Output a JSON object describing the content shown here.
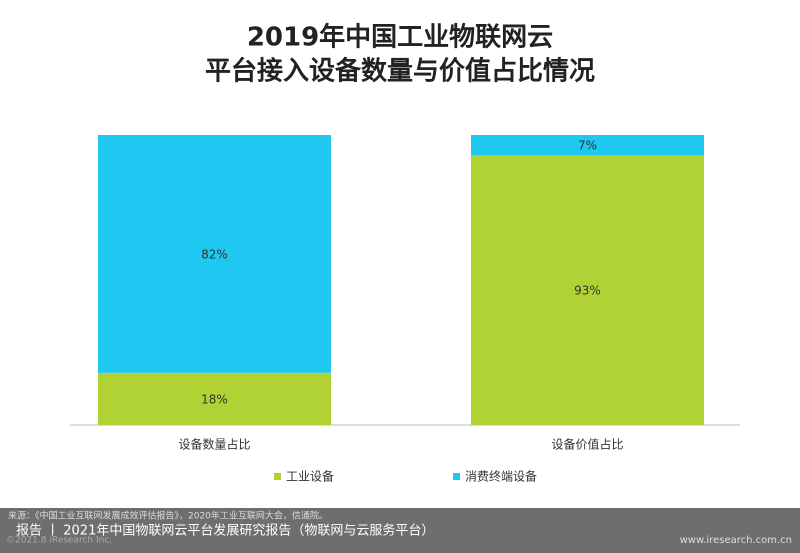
{
  "chart_data": {
    "type": "stacked_bar",
    "title": "2019年中国工业物联网云",
    "subtitle": "平台接入设备数量与价值占比情况",
    "categories": [
      "设备数量占比",
      "设备价值占比"
    ],
    "series": [
      {
        "name": "工业设备",
        "color": "#b0d235",
        "values": [
          18,
          93
        ],
        "value_labels": [
          "18%",
          "93%"
        ]
      },
      {
        "name": "消费终端设备",
        "color": "#1ec8f0",
        "values": [
          82,
          7
        ],
        "value_labels": [
          "82%",
          "7%"
        ]
      }
    ],
    "ylim": [
      0,
      100
    ],
    "legend": "bottom"
  },
  "footer": {
    "source": "来源：《中国工业互联网发展成效评估报告》，2020年工业互联网大会，信通院。",
    "report": "报告 丨 2021年中国物联网云平台发展研究报告（物联网与云服务平台）",
    "copyright": "©2021.8 iResearch Inc.",
    "website": "www.iresearch.com.cn"
  }
}
